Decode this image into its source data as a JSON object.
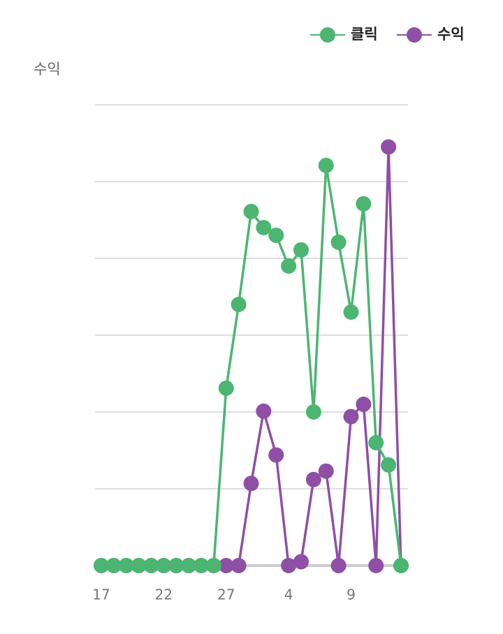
{
  "chart_data": {
    "type": "line",
    "y_label": "수익",
    "categories": [
      "17",
      null,
      null,
      null,
      null,
      "22",
      null,
      null,
      null,
      null,
      "27",
      null,
      null,
      null,
      null,
      "4",
      null,
      null,
      null,
      null,
      "9",
      null,
      null,
      null,
      null
    ],
    "series": [
      {
        "name": "수익",
        "color": "#8e4fa5",
        "values": [
          0,
          0,
          0,
          0,
          0,
          0,
          0,
          0,
          0,
          0,
          0,
          0,
          1.07,
          2.01,
          1.44,
          0,
          0.05,
          1.12,
          1.23,
          0,
          1.94,
          2.1,
          0,
          5.45,
          0
        ]
      },
      {
        "name": "클릭",
        "color": "#4cb571",
        "values": [
          0,
          0,
          0,
          0,
          0,
          0,
          0,
          0,
          0,
          0,
          2.31,
          3.4,
          4.61,
          4.4,
          4.3,
          3.9,
          4.11,
          2.0,
          5.21,
          4.21,
          3.3,
          4.71,
          1.6,
          1.31,
          0
        ]
      }
    ],
    "legend_order": [
      1,
      0
    ],
    "ylim": [
      0,
      6
    ],
    "yticks": [
      0,
      1,
      2,
      3,
      4,
      5,
      6
    ],
    "grid": true
  }
}
